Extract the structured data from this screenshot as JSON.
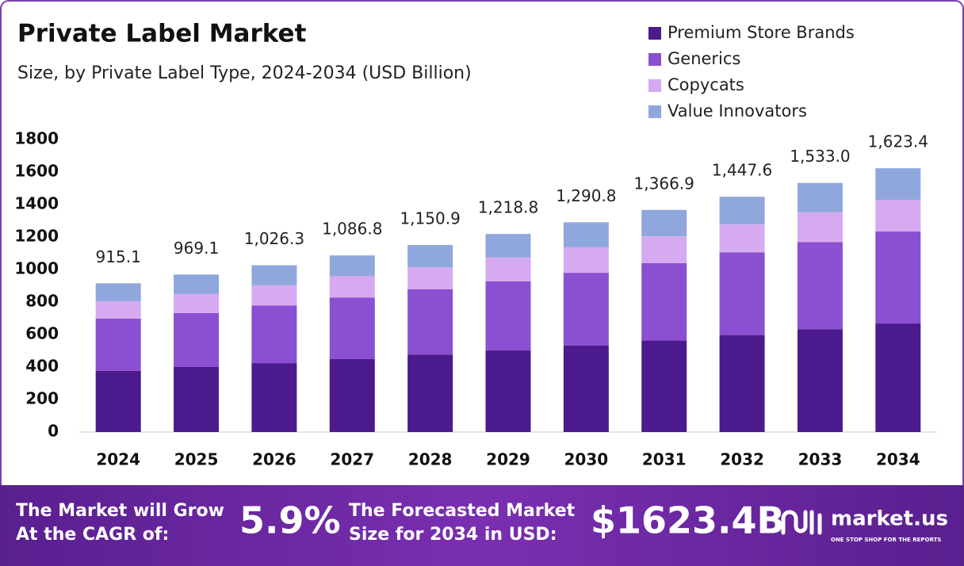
{
  "chart_data": {
    "type": "stacked-bar",
    "title": "Private Label Market",
    "subtitle": "Size, by Private Label Type, 2024-2034 (USD Billion)",
    "categories": [
      "2024",
      "2025",
      "2026",
      "2027",
      "2028",
      "2029",
      "2030",
      "2031",
      "2032",
      "2033",
      "2034"
    ],
    "series": [
      {
        "name": "Premium Store Brands",
        "color": "#4b1a8c",
        "values": [
          376,
          400,
          424,
          449,
          476,
          502,
          532,
          563,
          597,
          632,
          668
        ]
      },
      {
        "name": "Generics",
        "color": "#8b4fd2",
        "values": [
          322,
          332,
          355,
          379,
          402,
          426,
          448,
          477,
          508,
          537,
          566
        ]
      },
      {
        "name": "Copycats",
        "color": "#d6aaf0",
        "values": [
          107,
          117,
          124,
          131,
          136,
          146,
          157,
          164,
          172,
          183,
          195
        ]
      },
      {
        "name": "Value Innovators",
        "color": "#8fa7dd",
        "values": [
          110.1,
          120.1,
          123.3,
          127.8,
          136.9,
          144.8,
          153.8,
          162.9,
          170.6,
          181,
          194.4
        ]
      }
    ],
    "totals": {
      "values": [
        915.1,
        969.1,
        1026.3,
        1086.8,
        1150.9,
        1218.8,
        1290.8,
        1366.9,
        1447.6,
        1533.0,
        1623.4
      ],
      "value_labels": [
        "915.1",
        "969.1",
        "1,026.3",
        "1,086.8",
        "1,150.9",
        "1,218.8",
        "1,290.8",
        "1,366.9",
        "1,447.6",
        "1,533.0",
        "1,623.4"
      ]
    },
    "ylim": [
      0,
      1800
    ],
    "yticks": [
      0,
      200,
      400,
      600,
      800,
      1000,
      1200,
      1400,
      1600,
      1800
    ],
    "grid": false,
    "legend": "top-right"
  },
  "footer": {
    "cagr_text": [
      "The Market will Grow",
      "At the CAGR of:"
    ],
    "cagr_value": "5.9%",
    "forecast_text": [
      "The Forecasted Market",
      "Size for 2034 in USD:"
    ],
    "forecast_value": "$1623.4B",
    "brand": "market.us",
    "tagline": "ONE STOP SHOP FOR THE REPORTS"
  }
}
